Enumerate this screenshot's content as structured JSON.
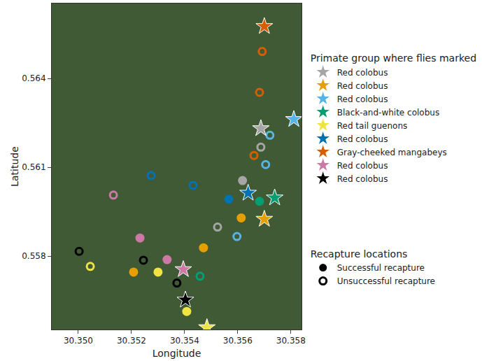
{
  "chart_data": {
    "type": "scatter",
    "x_label": "Longitude",
    "y_label": "Latitude",
    "xlim": [
      30.349,
      30.3584
    ],
    "ylim": [
      0.55552,
      0.56653
    ],
    "xticks": [
      {
        "value": 30.35,
        "label": "30.350"
      },
      {
        "value": 30.352,
        "label": "30.352"
      },
      {
        "value": 30.354,
        "label": "30.354"
      },
      {
        "value": 30.356,
        "label": "30.356"
      },
      {
        "value": 30.358,
        "label": "30.358"
      }
    ],
    "yticks": [
      0.558,
      0.561,
      0.564
    ],
    "grid": false,
    "group_legend_title": "Primate group where flies marked",
    "recapture_legend_title": "Recapture locations",
    "recapture_labels": {
      "successful": "Successful recapture",
      "unsuccessful": "Unsuccessful recapture"
    },
    "series": [
      {
        "name": "Red colobus",
        "color": "#a6a6a6",
        "marked_at": [
          30.35687,
          0.56231
        ],
        "x": [
          30.35687,
          30.35618,
          30.35524
        ],
        "y": [
          0.56168,
          0.56055,
          0.55898
        ],
        "recaptured": [
          false,
          true,
          false
        ]
      },
      {
        "name": "Red colobus",
        "color": "#e69f00",
        "marked_at": [
          30.357,
          0.55925
        ],
        "x": [
          30.35613,
          30.35471,
          30.35208
        ],
        "y": [
          0.55929,
          0.55828,
          0.55746
        ],
        "recaptured": [
          true,
          true,
          true
        ]
      },
      {
        "name": "Red colobus",
        "color": "#56b4e9",
        "marked_at": [
          30.35811,
          0.56262
        ],
        "x": [
          30.35721,
          30.35705,
          30.35597
        ],
        "y": [
          0.56208,
          0.56109,
          0.55866
        ],
        "recaptured": [
          false,
          false,
          false
        ]
      },
      {
        "name": "Black-and-white colobus",
        "color": "#009e73",
        "marked_at": [
          30.35739,
          0.55997
        ],
        "x": [
          30.35682,
          30.35458
        ],
        "y": [
          0.55985,
          0.55732
        ],
        "recaptured": [
          true,
          false
        ]
      },
      {
        "name": "Red tail guenons",
        "color": "#f0e442",
        "marked_at": [
          30.35484,
          0.55559
        ],
        "x": [
          30.353,
          30.35408,
          30.35045
        ],
        "y": [
          0.55746,
          0.55613,
          0.55765
        ],
        "recaptured": [
          true,
          true,
          false
        ]
      },
      {
        "name": "Red colobus",
        "color": "#0072b2",
        "marked_at": [
          30.35639,
          0.56013
        ],
        "x": [
          30.35566,
          30.35274,
          30.35432
        ],
        "y": [
          0.55992,
          0.56072,
          0.56039
        ],
        "recaptured": [
          true,
          false,
          false
        ]
      },
      {
        "name": "Gray-cheeked mangabeys",
        "color": "#d55e00",
        "marked_at": [
          30.357,
          0.56576
        ],
        "x": [
          30.35692,
          30.35682,
          30.35661
        ],
        "y": [
          0.56491,
          0.56353,
          0.5614
        ],
        "recaptured": [
          false,
          false,
          false
        ]
      },
      {
        "name": "Red colobus",
        "color": "#cc79a7",
        "marked_at": [
          30.35395,
          0.55755
        ],
        "x": [
          30.35232,
          30.35334,
          30.35132
        ],
        "y": [
          0.55861,
          0.55788,
          0.56006
        ],
        "recaptured": [
          true,
          true,
          false
        ]
      },
      {
        "name": "Red colobus",
        "color": "#000000",
        "marked_at": [
          30.35403,
          0.55652
        ],
        "x": [
          30.35003,
          30.35245,
          30.35371
        ],
        "y": [
          0.55816,
          0.55786,
          0.55709
        ],
        "recaptured": [
          false,
          false,
          false
        ]
      }
    ]
  }
}
